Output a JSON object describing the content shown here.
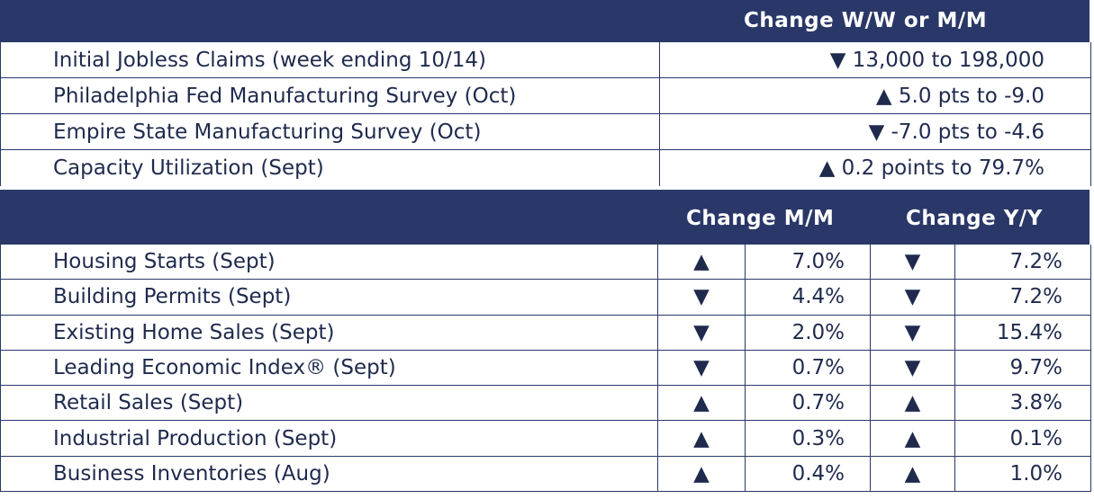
{
  "header1": {
    "label": "Change W/W or M/M"
  },
  "weekly": [
    {
      "name": "Initial Jobless Claims (week ending 10/14)",
      "change": "▼ 13,000 to 198,000"
    },
    {
      "name": "Philadelphia Fed Manufacturing Survey (Oct)",
      "change": "▲ 5.0 pts to -9.0"
    },
    {
      "name": "Empire State Manufacturing Survey (Oct)",
      "change": "▼ -7.0 pts to -4.6"
    },
    {
      "name": "Capacity Utilization (Sept)",
      "change": "▲ 0.2 points to 79.7%"
    }
  ],
  "header2": {
    "mm_label": "Change M/M",
    "yy_label": "Change Y/Y"
  },
  "monthly": [
    {
      "name": "Housing Starts (Sept)",
      "mm_dir": "▲",
      "mm": "7.0%",
      "yy_dir": "▼",
      "yy": "7.2%"
    },
    {
      "name": "Building Permits (Sept)",
      "mm_dir": "▼",
      "mm": "4.4%",
      "yy_dir": "▼",
      "yy": "7.2%"
    },
    {
      "name": "Existing Home Sales (Sept)",
      "mm_dir": "▼",
      "mm": "2.0%",
      "yy_dir": "▼",
      "yy": "15.4%"
    },
    {
      "name": "Leading Economic Index® (Sept)",
      "mm_dir": "▼",
      "mm": "0.7%",
      "yy_dir": "▼",
      "yy": "9.7%"
    },
    {
      "name": "Retail Sales (Sept)",
      "mm_dir": "▲",
      "mm": "0.7%",
      "yy_dir": "▲",
      "yy": "3.8%"
    },
    {
      "name": "Industrial Production (Sept)",
      "mm_dir": "▲",
      "mm": "0.3%",
      "yy_dir": "▲",
      "yy": "0.1%"
    },
    {
      "name": "Business Inventories (Aug)",
      "mm_dir": "▲",
      "mm": "0.4%",
      "yy_dir": "▲",
      "yy": "1.0%"
    }
  ],
  "colors": {
    "header_bg": "#293868",
    "text": "#1f2a4d",
    "border": "#293868"
  }
}
